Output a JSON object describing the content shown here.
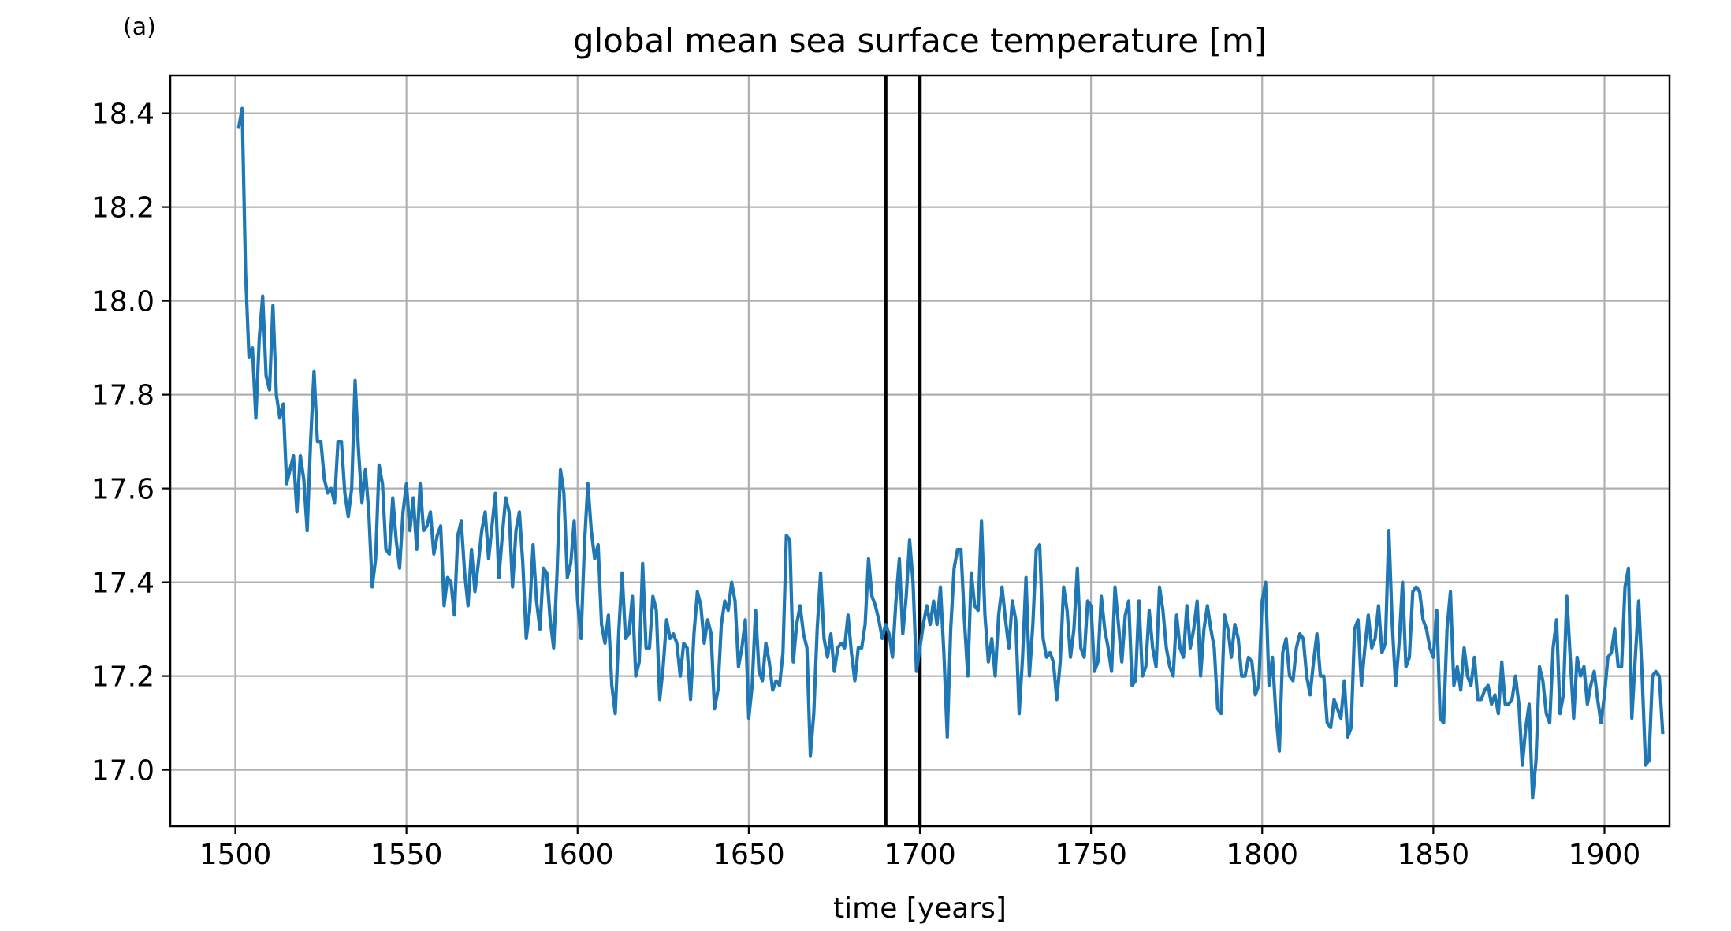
{
  "panel_label": "(a)",
  "colors": {
    "series": "#1f77b4",
    "grid": "#b0b0b0",
    "markers": "#000000"
  },
  "chart_data": {
    "type": "line",
    "title": "global mean sea surface temperature [m]",
    "xlabel": "time [years]",
    "ylabel": "",
    "xlim": [
      1481,
      1919
    ],
    "ylim": [
      16.88,
      18.48
    ],
    "xticks": [
      1500,
      1550,
      1600,
      1650,
      1700,
      1750,
      1800,
      1850,
      1900
    ],
    "yticks": [
      17.0,
      17.2,
      17.4,
      17.6,
      17.8,
      18.0,
      18.2,
      18.4
    ],
    "ytick_labels": [
      "17.0",
      "17.2",
      "17.4",
      "17.6",
      "17.8",
      "18.0",
      "18.2",
      "18.4"
    ],
    "grid": true,
    "vertical_lines": [
      1690,
      1700
    ],
    "x_start": 1501,
    "x_step": 1,
    "series": [
      {
        "values": [
          18.37,
          18.41,
          18.06,
          17.88,
          17.9,
          17.75,
          17.92,
          18.01,
          17.84,
          17.81,
          17.99,
          17.8,
          17.75,
          17.78,
          17.61,
          17.64,
          17.67,
          17.55,
          17.67,
          17.62,
          17.51,
          17.7,
          17.85,
          17.7,
          17.7,
          17.62,
          17.59,
          17.6,
          17.57,
          17.7,
          17.7,
          17.59,
          17.54,
          17.6,
          17.83,
          17.68,
          17.57,
          17.64,
          17.55,
          17.39,
          17.45,
          17.65,
          17.61,
          17.47,
          17.46,
          17.58,
          17.49,
          17.43,
          17.55,
          17.61,
          17.51,
          17.58,
          17.47,
          17.61,
          17.51,
          17.52,
          17.55,
          17.46,
          17.5,
          17.52,
          17.35,
          17.41,
          17.4,
          17.33,
          17.5,
          17.53,
          17.42,
          17.35,
          17.47,
          17.38,
          17.44,
          17.51,
          17.55,
          17.45,
          17.52,
          17.59,
          17.41,
          17.5,
          17.58,
          17.55,
          17.39,
          17.51,
          17.55,
          17.44,
          17.28,
          17.34,
          17.48,
          17.36,
          17.3,
          17.43,
          17.42,
          17.32,
          17.26,
          17.42,
          17.64,
          17.59,
          17.41,
          17.44,
          17.53,
          17.36,
          17.28,
          17.48,
          17.61,
          17.51,
          17.45,
          17.48,
          17.31,
          17.27,
          17.33,
          17.18,
          17.12,
          17.29,
          17.42,
          17.28,
          17.29,
          17.37,
          17.2,
          17.23,
          17.44,
          17.26,
          17.26,
          17.37,
          17.34,
          17.15,
          17.22,
          17.32,
          17.28,
          17.29,
          17.27,
          17.2,
          17.27,
          17.26,
          17.15,
          17.29,
          17.38,
          17.35,
          17.27,
          17.32,
          17.29,
          17.13,
          17.17,
          17.31,
          17.36,
          17.34,
          17.4,
          17.36,
          17.22,
          17.26,
          17.32,
          17.11,
          17.18,
          17.34,
          17.21,
          17.19,
          17.27,
          17.23,
          17.17,
          17.19,
          17.18,
          17.25,
          17.5,
          17.49,
          17.23,
          17.31,
          17.35,
          17.29,
          17.26,
          17.03,
          17.12,
          17.3,
          17.42,
          17.28,
          17.24,
          17.29,
          17.21,
          17.26,
          17.27,
          17.26,
          17.33,
          17.25,
          17.19,
          17.26,
          17.26,
          17.31,
          17.45,
          17.37,
          17.35,
          17.32,
          17.28,
          17.31,
          17.29,
          17.24,
          17.36,
          17.45,
          17.29,
          17.37,
          17.49,
          17.4,
          17.21,
          17.26,
          17.31,
          17.35,
          17.31,
          17.36,
          17.31,
          17.39,
          17.25,
          17.07,
          17.3,
          17.43,
          17.47,
          17.47,
          17.32,
          17.2,
          17.42,
          17.35,
          17.34,
          17.53,
          17.33,
          17.23,
          17.28,
          17.2,
          17.33,
          17.39,
          17.32,
          17.26,
          17.36,
          17.32,
          17.12,
          17.24,
          17.41,
          17.2,
          17.31,
          17.47,
          17.48,
          17.28,
          17.24,
          17.25,
          17.23,
          17.15,
          17.23,
          17.39,
          17.34,
          17.24,
          17.3,
          17.43,
          17.26,
          17.24,
          17.36,
          17.35,
          17.21,
          17.23,
          17.37,
          17.3,
          17.26,
          17.21,
          17.39,
          17.31,
          17.23,
          17.33,
          17.36,
          17.18,
          17.19,
          17.36,
          17.2,
          17.22,
          17.34,
          17.26,
          17.22,
          17.39,
          17.34,
          17.26,
          17.22,
          17.2,
          17.33,
          17.26,
          17.24,
          17.35,
          17.26,
          17.3,
          17.36,
          17.2,
          17.3,
          17.35,
          17.3,
          17.26,
          17.13,
          17.12,
          17.33,
          17.3,
          17.24,
          17.31,
          17.28,
          17.2,
          17.2,
          17.24,
          17.23,
          17.16,
          17.18,
          17.36,
          17.4,
          17.18,
          17.24,
          17.12,
          17.04,
          17.25,
          17.28,
          17.2,
          17.19,
          17.26,
          17.29,
          17.28,
          17.2,
          17.16,
          17.23,
          17.29,
          17.2,
          17.2,
          17.1,
          17.09,
          17.15,
          17.13,
          17.11,
          17.19,
          17.07,
          17.09,
          17.3,
          17.32,
          17.18,
          17.26,
          17.33,
          17.26,
          17.28,
          17.35,
          17.25,
          17.27,
          17.51,
          17.31,
          17.18,
          17.27,
          17.4,
          17.22,
          17.24,
          17.38,
          17.39,
          17.38,
          17.32,
          17.3,
          17.26,
          17.24,
          17.34,
          17.11,
          17.1,
          17.3,
          17.38,
          17.18,
          17.22,
          17.17,
          17.26,
          17.2,
          17.18,
          17.24,
          17.15,
          17.15,
          17.17,
          17.18,
          17.14,
          17.16,
          17.12,
          17.23,
          17.14,
          17.14,
          17.15,
          17.2,
          17.14,
          17.01,
          17.09,
          17.14,
          16.94,
          17.02,
          17.22,
          17.19,
          17.12,
          17.1,
          17.26,
          17.32,
          17.12,
          17.16,
          17.37,
          17.24,
          17.11,
          17.24,
          17.2,
          17.22,
          17.14,
          17.18,
          17.21,
          17.15,
          17.1,
          17.16,
          17.24,
          17.25,
          17.3,
          17.22,
          17.22,
          17.39,
          17.43,
          17.11,
          17.24,
          17.36,
          17.2,
          17.01,
          17.02,
          17.2,
          17.21,
          17.2,
          17.08
        ]
      }
    ]
  }
}
